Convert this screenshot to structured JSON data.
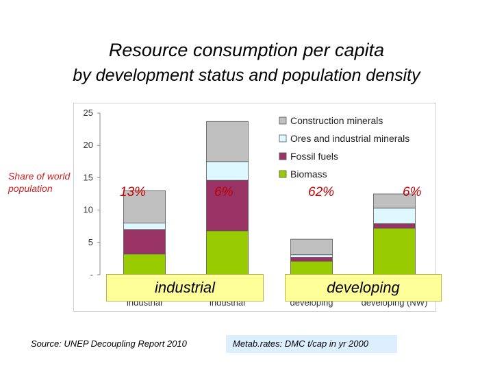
{
  "title": "Resource consumption per capita",
  "subtitle": "by development status and population  density",
  "share_label": "Share of world population",
  "share_values": [
    "13%",
    "6%",
    "62%",
    "6%"
  ],
  "banners": {
    "left": "industrial",
    "right": "developing"
  },
  "source": "Source: UNEP Decoupling Report 2010",
  "metab_note": "Metab.rates: DMC t/cap in yr 2000",
  "colors": {
    "Construction minerals": "#c0c0c0",
    "Ores and industrial minerals": "#ddf8ff",
    "Fossil fuels": "#993366",
    "Biomass": "#99cc00"
  },
  "chart_data": {
    "type": "bar",
    "stacked": true,
    "categories": [
      "industrial",
      "industrial",
      "developing",
      "developing (NW)"
    ],
    "series": [
      {
        "name": "Biomass",
        "values": [
          3.2,
          6.8,
          2.1,
          7.2
        ]
      },
      {
        "name": "Fossil fuels",
        "values": [
          3.8,
          7.8,
          0.6,
          0.7
        ]
      },
      {
        "name": "Ores and industrial minerals",
        "values": [
          1.0,
          2.9,
          0.4,
          2.4
        ]
      },
      {
        "name": "Construction minerals",
        "values": [
          5.0,
          6.2,
          2.4,
          2.2
        ]
      }
    ],
    "legend_order": [
      "Construction minerals",
      "Ores and industrial minerals",
      "Fossil fuels",
      "Biomass"
    ],
    "yticks": [
      "-",
      "5",
      "10",
      "15",
      "20",
      "25"
    ],
    "ylim": [
      0,
      25
    ],
    "legend_position": "top-right"
  }
}
